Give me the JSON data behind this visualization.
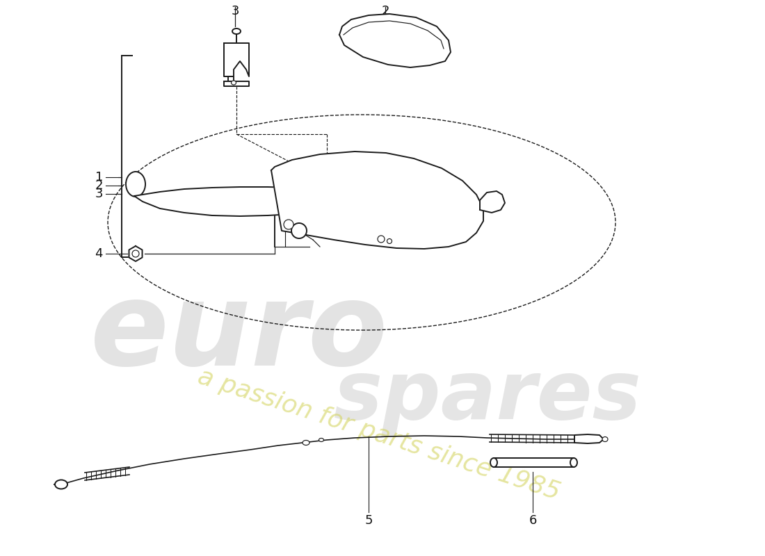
{
  "bg_color": "#ffffff",
  "line_color": "#1a1a1a",
  "lw": 1.4,
  "lt": 0.85,
  "fs": 13,
  "watermark_texts": [
    "euro",
    "spares",
    "a passion for parts since 1985"
  ],
  "watermark_colors": [
    "#c8c8c8",
    "#c8c8c8",
    "#d4d460"
  ],
  "parts": [
    "1",
    "2",
    "3",
    "4",
    "5",
    "6"
  ]
}
